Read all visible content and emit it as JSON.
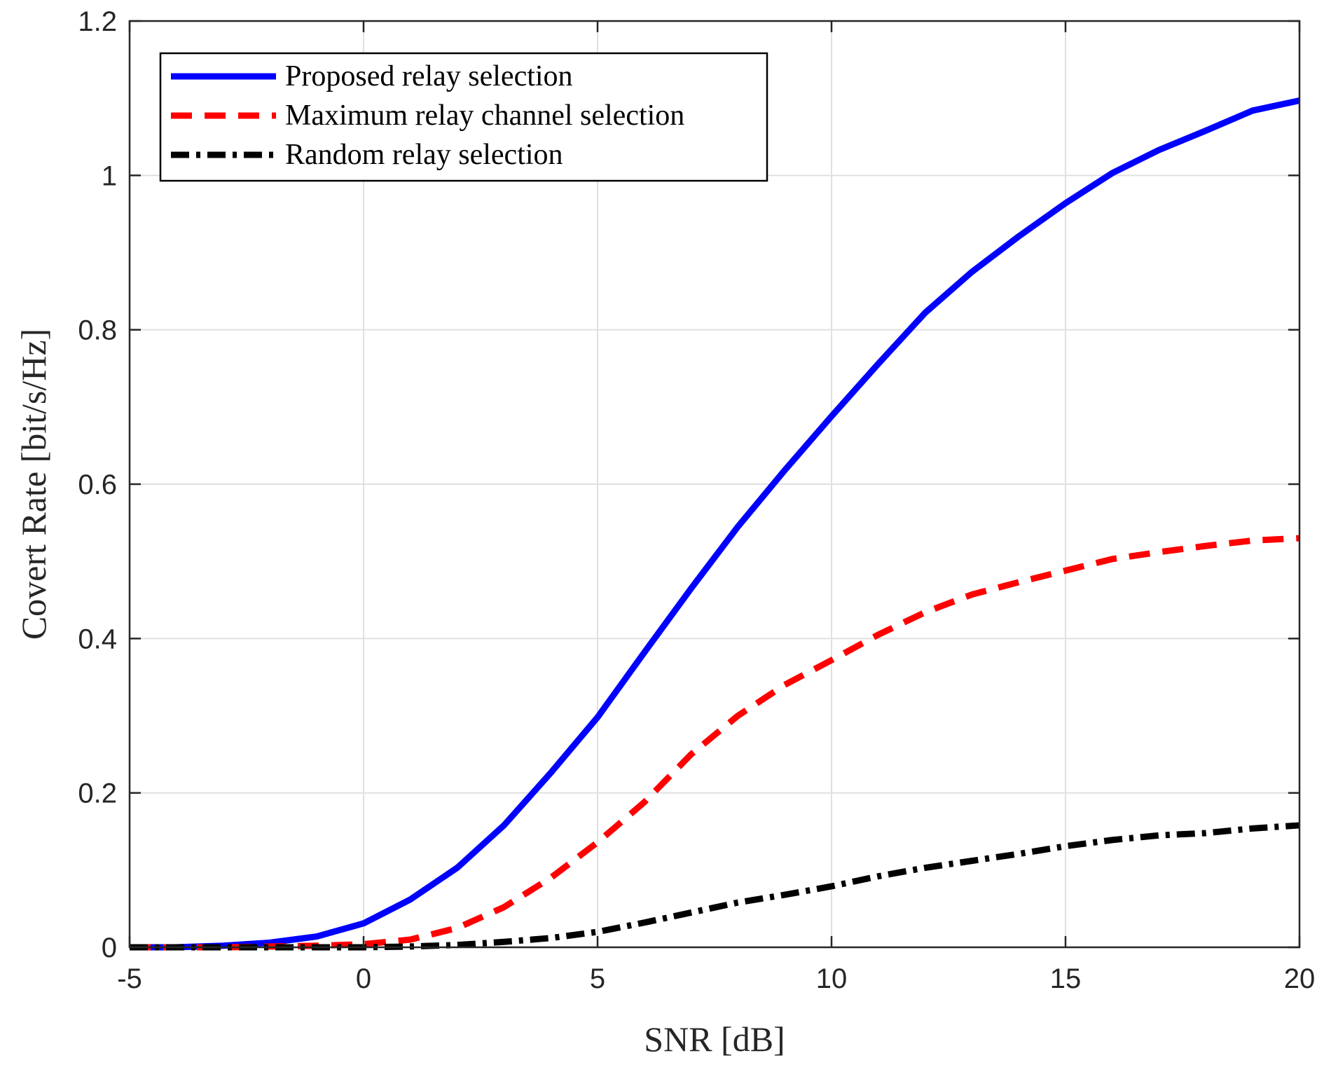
{
  "chart_data": {
    "type": "line",
    "xlabel": "SNR [dB]",
    "ylabel": "Covert Rate [bit/s/Hz]",
    "xlim": [
      -5,
      20
    ],
    "ylim": [
      0,
      1.2
    ],
    "grid": true,
    "legend_position": "top-left",
    "x_ticks": [
      -5,
      0,
      5,
      10,
      15,
      20
    ],
    "x_tick_labels": [
      "-5",
      "0",
      "5",
      "10",
      "15",
      "20"
    ],
    "y_ticks": [
      0,
      0.2,
      0.4,
      0.6,
      0.8,
      1.0,
      1.2
    ],
    "y_tick_labels": [
      "0",
      "0.2",
      "0.4",
      "0.6",
      "0.8",
      "1",
      "1.2"
    ],
    "x": [
      -5,
      -4,
      -3,
      -2,
      -1,
      0,
      1,
      2,
      3,
      4,
      5,
      6,
      7,
      8,
      9,
      10,
      11,
      12,
      13,
      14,
      15,
      16,
      17,
      18,
      19,
      20
    ],
    "series": [
      {
        "name": "Proposed relay selection",
        "color": "#0000FF",
        "style": "solid",
        "values": [
          0.0,
          0.0,
          0.002,
          0.006,
          0.014,
          0.031,
          0.062,
          0.103,
          0.158,
          0.226,
          0.298,
          0.382,
          0.465,
          0.545,
          0.618,
          0.688,
          0.756,
          0.822,
          0.875,
          0.921,
          0.964,
          1.003,
          1.033,
          1.058,
          1.084,
          1.097
        ]
      },
      {
        "name": "Maximum relay channel selection",
        "color": "#FF0000",
        "style": "dashed",
        "values": [
          0.0,
          0.0,
          0.0,
          0.001,
          0.002,
          0.004,
          0.01,
          0.025,
          0.052,
          0.09,
          0.136,
          0.188,
          0.25,
          0.3,
          0.34,
          0.372,
          0.405,
          0.434,
          0.457,
          0.473,
          0.488,
          0.503,
          0.512,
          0.52,
          0.527,
          0.53
        ]
      },
      {
        "name": "Random relay selection",
        "color": "#000000",
        "style": "dashdot",
        "values": [
          0.0,
          0.0,
          0.0,
          0.0,
          0.0,
          0.0,
          0.001,
          0.003,
          0.007,
          0.012,
          0.02,
          0.032,
          0.045,
          0.058,
          0.068,
          0.079,
          0.092,
          0.103,
          0.112,
          0.121,
          0.131,
          0.139,
          0.145,
          0.148,
          0.154,
          0.158
        ]
      }
    ]
  }
}
